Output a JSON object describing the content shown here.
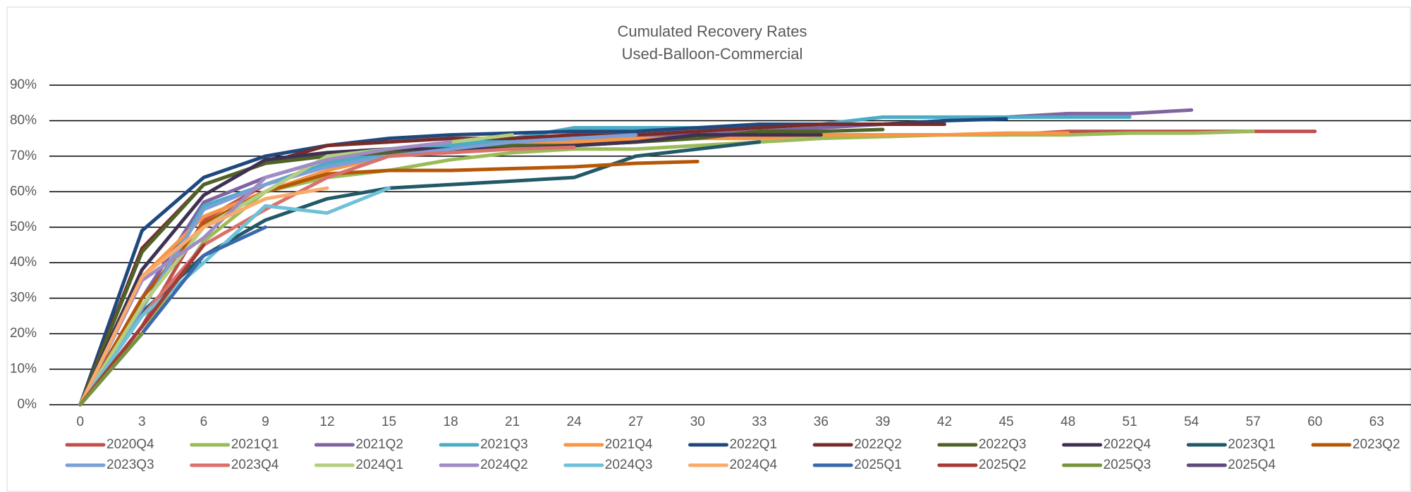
{
  "chart_data": {
    "type": "line",
    "title": "Cumulated Recovery Rates",
    "subtitle": "Used-Balloon-Commercial",
    "categories": [
      "0",
      "3",
      "6",
      "9",
      "12",
      "15",
      "18",
      "21",
      "24",
      "27",
      "30",
      "33",
      "36",
      "39",
      "42",
      "45",
      "48",
      "51",
      "54",
      "57",
      "60",
      "63"
    ],
    "ylim": [
      0,
      90
    ],
    "yticks": [
      {
        "value": 0,
        "label": "0%"
      },
      {
        "value": 10,
        "label": "10%"
      },
      {
        "value": 20,
        "label": "20%"
      },
      {
        "value": 30,
        "label": "30%"
      },
      {
        "value": 40,
        "label": "40%"
      },
      {
        "value": 50,
        "label": "50%"
      },
      {
        "value": 60,
        "label": "60%"
      },
      {
        "value": 70,
        "label": "70%"
      },
      {
        "value": 80,
        "label": "80%"
      },
      {
        "value": 90,
        "label": "90%"
      }
    ],
    "grid": true,
    "legend": "bottom",
    "series": [
      {
        "name": "2020Q4",
        "color": "#c0504d",
        "values": [
          0,
          22,
          52,
          62,
          68,
          71,
          73,
          74,
          75,
          76,
          76,
          76,
          76,
          76,
          76,
          76,
          77,
          77,
          77,
          77,
          77,
          null
        ]
      },
      {
        "name": "2021Q1",
        "color": "#9bbb59",
        "values": [
          0,
          20,
          46,
          60,
          64,
          66,
          69,
          71,
          72,
          72,
          73,
          74,
          75,
          75.5,
          76,
          76,
          76,
          76.5,
          76.5,
          77,
          null,
          null
        ]
      },
      {
        "name": "2021Q2",
        "color": "#8064a2",
        "values": [
          0,
          30,
          57,
          64,
          69,
          71,
          72,
          73,
          74,
          75,
          76,
          77,
          78,
          79,
          80,
          81,
          82,
          82,
          83,
          null,
          null,
          null
        ]
      },
      {
        "name": "2021Q3",
        "color": "#4bacc6",
        "values": [
          0,
          27,
          56,
          62,
          68,
          71,
          73,
          75,
          78,
          78,
          78,
          78,
          79,
          81,
          81,
          81,
          81,
          81,
          null,
          null,
          null,
          null
        ]
      },
      {
        "name": "2021Q4",
        "color": "#f79646",
        "values": [
          0,
          36,
          53,
          60,
          66,
          70,
          72,
          73,
          74,
          75,
          75,
          75,
          76,
          76,
          76,
          76.5,
          76.5,
          null,
          null,
          null,
          null,
          null
        ]
      },
      {
        "name": "2022Q1",
        "color": "#1f497d",
        "values": [
          0,
          49,
          64,
          70,
          73,
          75,
          76,
          76.5,
          77,
          77,
          78,
          79,
          79,
          79,
          80,
          80.5,
          null,
          null,
          null,
          null,
          null,
          null
        ]
      },
      {
        "name": "2022Q2",
        "color": "#772c2a",
        "values": [
          0,
          44,
          62,
          68,
          73,
          74,
          75,
          75,
          76,
          76,
          77,
          78,
          79,
          79,
          79,
          null,
          null,
          null,
          null,
          null,
          null,
          null
        ]
      },
      {
        "name": "2022Q3",
        "color": "#4f6228",
        "values": [
          0,
          43,
          62,
          68,
          70,
          71,
          72,
          73,
          73,
          74,
          75,
          77,
          77,
          77.5,
          null,
          null,
          null,
          null,
          null,
          null,
          null,
          null
        ]
      },
      {
        "name": "2022Q4",
        "color": "#3f3151",
        "values": [
          0,
          38,
          59,
          69,
          71,
          72,
          72,
          72,
          73,
          74,
          76,
          76,
          76,
          null,
          null,
          null,
          null,
          null,
          null,
          null,
          null,
          null
        ]
      },
      {
        "name": "2023Q1",
        "color": "#215968",
        "values": [
          0,
          26,
          42,
          52,
          58,
          61,
          62,
          63,
          64,
          70,
          72,
          74,
          null,
          null,
          null,
          null,
          null,
          null,
          null,
          null,
          null,
          null
        ]
      },
      {
        "name": "2023Q2",
        "color": "#b65708",
        "values": [
          0,
          30,
          51,
          60,
          65,
          66,
          66,
          66.5,
          67,
          68,
          68.5,
          null,
          null,
          null,
          null,
          null,
          null,
          null,
          null,
          null,
          null,
          null
        ]
      },
      {
        "name": "2023Q3",
        "color": "#7ba0d8",
        "values": [
          0,
          27,
          55,
          62,
          67,
          70,
          72,
          74,
          75,
          76,
          null,
          null,
          null,
          null,
          null,
          null,
          null,
          null,
          null,
          null,
          null,
          null
        ]
      },
      {
        "name": "2023Q4",
        "color": "#d9726d",
        "values": [
          0,
          25,
          45,
          55,
          64,
          70,
          71,
          72,
          72.5,
          null,
          null,
          null,
          null,
          null,
          null,
          null,
          null,
          null,
          null,
          null,
          null,
          null
        ]
      },
      {
        "name": "2024Q1",
        "color": "#b3cf7f",
        "values": [
          0,
          28,
          50,
          60,
          70,
          72,
          74,
          76,
          null,
          null,
          null,
          null,
          null,
          null,
          null,
          null,
          null,
          null,
          null,
          null,
          null,
          null
        ]
      },
      {
        "name": "2024Q2",
        "color": "#a08cc4",
        "values": [
          0,
          35,
          47,
          64,
          69,
          72,
          74,
          null,
          null,
          null,
          null,
          null,
          null,
          null,
          null,
          null,
          null,
          null,
          null,
          null,
          null,
          null
        ]
      },
      {
        "name": "2024Q3",
        "color": "#6fc1d8",
        "values": [
          0,
          25,
          40,
          56,
          54,
          61,
          null,
          null,
          null,
          null,
          null,
          null,
          null,
          null,
          null,
          null,
          null,
          null,
          null,
          null,
          null,
          null
        ]
      },
      {
        "name": "2024Q4",
        "color": "#f9ab6b",
        "values": [
          0,
          36,
          50,
          58,
          61,
          null,
          null,
          null,
          null,
          null,
          null,
          null,
          null,
          null,
          null,
          null,
          null,
          null,
          null,
          null,
          null,
          null
        ]
      },
      {
        "name": "2025Q1",
        "color": "#3a6aad",
        "values": [
          0,
          20,
          42,
          50,
          null,
          null,
          null,
          null,
          null,
          null,
          null,
          null,
          null,
          null,
          null,
          null,
          null,
          null,
          null,
          null,
          null,
          null
        ]
      },
      {
        "name": "2025Q2",
        "color": "#a33b38",
        "values": [
          0,
          22,
          45,
          null,
          null,
          null,
          null,
          null,
          null,
          null,
          null,
          null,
          null,
          null,
          null,
          null,
          null,
          null,
          null,
          null,
          null,
          null
        ]
      },
      {
        "name": "2025Q3",
        "color": "#77933c",
        "values": [
          0,
          20,
          null,
          null,
          null,
          null,
          null,
          null,
          null,
          null,
          null,
          null,
          null,
          null,
          null,
          null,
          null,
          null,
          null,
          null,
          null,
          null
        ]
      },
      {
        "name": "2025Q4",
        "color": "#604a7b",
        "values": [
          0,
          null,
          null,
          null,
          null,
          null,
          null,
          null,
          null,
          null,
          null,
          null,
          null,
          null,
          null,
          null,
          null,
          null,
          null,
          null,
          null,
          null
        ]
      }
    ]
  }
}
